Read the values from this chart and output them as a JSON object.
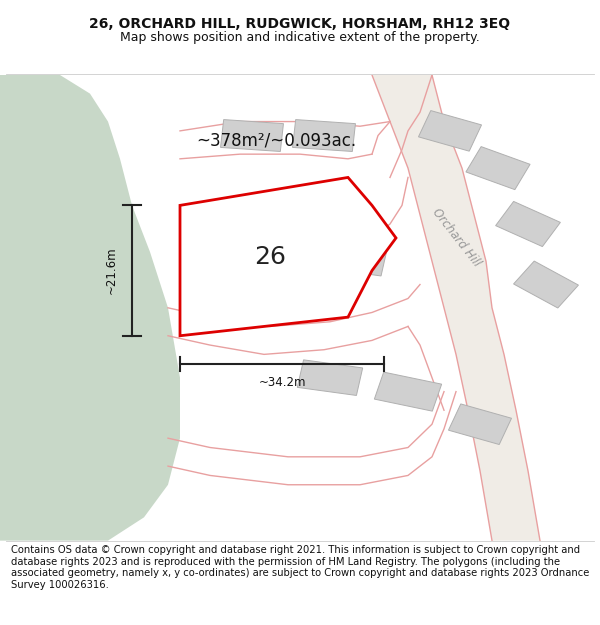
{
  "title_line1": "26, ORCHARD HILL, RUDGWICK, HORSHAM, RH12 3EQ",
  "title_line2": "Map shows position and indicative extent of the property.",
  "footer": "Contains OS data © Crown copyright and database right 2021. This information is subject to Crown copyright and database rights 2023 and is reproduced with the permission of HM Land Registry. The polygons (including the associated geometry, namely x, y co-ordinates) are subject to Crown copyright and database rights 2023 Ordnance Survey 100026316.",
  "area_label": "~378m²/~0.093ac.",
  "label_26": "26",
  "dim_vertical": "~21.6m",
  "dim_horizontal": "~34.2m",
  "road_label": "Orchard Hill",
  "bg_color": "#f2ede8",
  "green_area_color": "#c8d8c8",
  "plot_fill": "#ffffff",
  "plot_edge_color": "#dd0000",
  "building_fill": "#d0d0d0",
  "building_edge_color": "#b0b0b0",
  "road_edge_color": "#e8a0a0",
  "dim_line_color": "#222222",
  "title_fontsize": 10,
  "subtitle_fontsize": 9,
  "footer_fontsize": 7.2
}
